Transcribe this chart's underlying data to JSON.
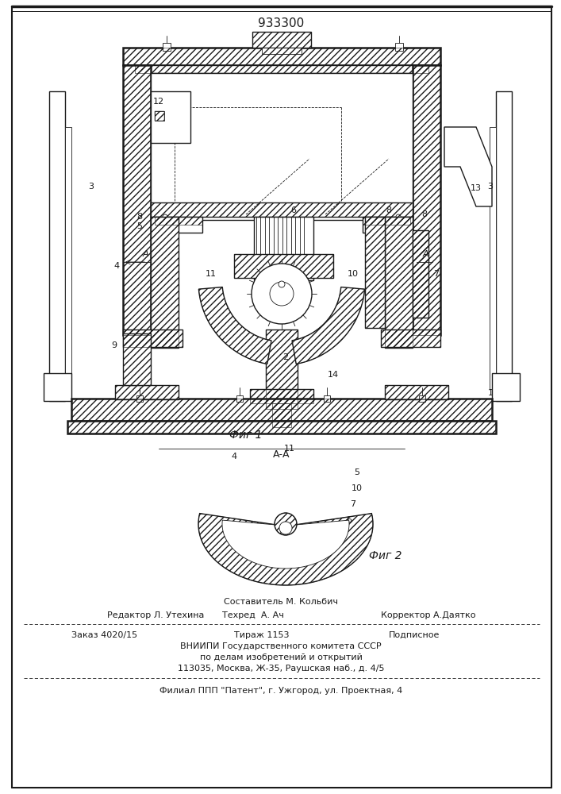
{
  "patent_number": "933300",
  "fig1_label": "Фиг 1",
  "fig2_label": "Фиг 2",
  "section_label": "А-А",
  "footer_line1": "Составитель М. Кольбич",
  "footer_line2_left": "Редактор Л. Утехина",
  "footer_line2_mid": "Техред  А. Ач",
  "footer_line2_right": "Корректор А.Даятко",
  "footer_line3_left": "Заказ 4020/15",
  "footer_line3_mid": "Тираж 1153",
  "footer_line3_right": "Подписное",
  "footer_line4": "ВНИИПИ Государственного комитета СССР",
  "footer_line5": "по делам изобретений и открытий",
  "footer_line6": "113035, Москва, Ж-35, Раушская наб., д. 4/5",
  "footer_line7": "Филиал ППП \"Патент\", г. Ужгород, ул. Проектная, 4",
  "bg_color": "#ffffff",
  "line_color": "#1a1a1a"
}
